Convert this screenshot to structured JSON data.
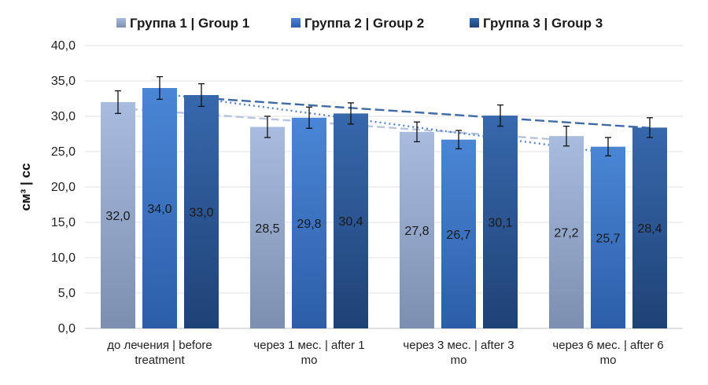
{
  "chart_data": {
    "type": "bar",
    "title": "",
    "xlabel": "",
    "ylabel": "см³ | cc",
    "ylim": [
      0,
      40
    ],
    "yticks": [
      "0,0",
      "5,0",
      "10,0",
      "15,0",
      "20,0",
      "25,0",
      "30,0",
      "35,0",
      "40,0"
    ],
    "grid": true,
    "legend_position": "top",
    "categories": [
      [
        "до лечения | before",
        "treatment"
      ],
      [
        "через 1 мес. | after 1",
        "mo"
      ],
      [
        "через 3 мес. | after 3",
        "mo"
      ],
      [
        "через 6 мес. | after 6",
        "mo"
      ]
    ],
    "series": [
      {
        "name": "Группа 1 | Group 1",
        "values": [
          32.0,
          28.5,
          27.8,
          27.2
        ],
        "labels": [
          "32,0",
          "28,5",
          "27,8",
          "27,2"
        ],
        "error": [
          1.6,
          1.5,
          1.4,
          1.4
        ],
        "color_top": "#a8bce0",
        "color_bottom": "#7d8fb0",
        "trend_color": "#b8c4dc",
        "trend_dash": "10,5"
      },
      {
        "name": "Группа 2 | Group 2",
        "values": [
          34.0,
          29.8,
          26.7,
          25.7
        ],
        "labels": [
          "34,0",
          "29,8",
          "26,7",
          "25,7"
        ],
        "error": [
          1.6,
          1.5,
          1.3,
          1.3
        ],
        "color_top": "#4a86d6",
        "color_bottom": "#2c5ea8",
        "trend_color": "#5a86c8",
        "trend_dash": "2,4"
      },
      {
        "name": "Группа 3 | Group 3",
        "values": [
          33.0,
          30.4,
          30.1,
          28.4
        ],
        "labels": [
          "33,0",
          "30,4",
          "30,1",
          "28,4"
        ],
        "error": [
          1.6,
          1.5,
          1.5,
          1.4
        ],
        "color_top": "#3768ac",
        "color_bottom": "#1f4276",
        "trend_color": "#3f6aa6",
        "trend_dash": "12,5"
      }
    ]
  }
}
